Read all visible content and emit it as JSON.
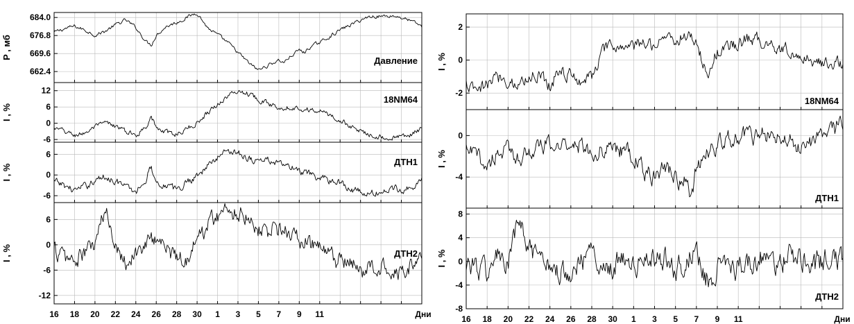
{
  "figure": {
    "x_axis_label": "Дни",
    "x_ticks": [
      "16",
      "18",
      "20",
      "22",
      "24",
      "26",
      "28",
      "30",
      "1",
      "3",
      "5",
      "7",
      "9",
      "11"
    ]
  },
  "chart_data": [
    {
      "type": "line",
      "label": "Давление",
      "ylabel": "P , мб",
      "yticks": [
        "684.0",
        "676.8",
        "669.6",
        "662.4"
      ],
      "ylim": [
        658,
        686
      ],
      "keypoints": [
        [
          0,
          678
        ],
        [
          1,
          679.5
        ],
        [
          2,
          680.5
        ],
        [
          3,
          679
        ],
        [
          4,
          677
        ],
        [
          5,
          678.5
        ],
        [
          6,
          681
        ],
        [
          7,
          683
        ],
        [
          8,
          680
        ],
        [
          9,
          674.5
        ],
        [
          9.5,
          673
        ],
        [
          10,
          677
        ],
        [
          11,
          680.5
        ],
        [
          12,
          682
        ],
        [
          13,
          684
        ],
        [
          14,
          686
        ],
        [
          14.5,
          683
        ],
        [
          15,
          680
        ],
        [
          16,
          677
        ],
        [
          17,
          674
        ],
        [
          18,
          670
        ],
        [
          19,
          666
        ],
        [
          20,
          663
        ],
        [
          21,
          665
        ],
        [
          22,
          667
        ],
        [
          22.5,
          666
        ],
        [
          23,
          668
        ],
        [
          24,
          671
        ],
        [
          24.5,
          670
        ],
        [
          25,
          672
        ],
        [
          26,
          674
        ],
        [
          27,
          676.5
        ],
        [
          28,
          679
        ],
        [
          29,
          681
        ],
        [
          30,
          683
        ],
        [
          31,
          684.5
        ],
        [
          32,
          684.5
        ],
        [
          33,
          684.8
        ],
        [
          34,
          684
        ],
        [
          35,
          682.5
        ],
        [
          36,
          680.5
        ]
      ],
      "noise": 0.6
    },
    {
      "type": "line",
      "label": "18NM64",
      "ylabel": "I , %",
      "yticks": [
        "12",
        "6",
        "0",
        "-6"
      ],
      "ylim": [
        -7,
        15
      ],
      "keypoints": [
        [
          0,
          -2
        ],
        [
          1,
          -3
        ],
        [
          2,
          -4.5
        ],
        [
          3,
          -3.5
        ],
        [
          4,
          -1.5
        ],
        [
          5,
          0
        ],
        [
          6,
          -1
        ],
        [
          7,
          -3
        ],
        [
          8,
          -4.5
        ],
        [
          9,
          -1
        ],
        [
          9.5,
          3
        ],
        [
          10,
          -2
        ],
        [
          11,
          -3.5
        ],
        [
          12,
          -4
        ],
        [
          13,
          -2
        ],
        [
          14,
          0
        ],
        [
          15,
          4
        ],
        [
          16,
          7
        ],
        [
          17,
          10
        ],
        [
          18,
          12
        ],
        [
          19,
          11
        ],
        [
          20,
          9
        ],
        [
          21,
          7
        ],
        [
          22,
          6
        ],
        [
          23,
          6
        ],
        [
          24,
          5.5
        ],
        [
          25,
          5
        ],
        [
          26,
          4.5
        ],
        [
          27,
          3
        ],
        [
          28,
          1
        ],
        [
          29,
          -1
        ],
        [
          30,
          -3
        ],
        [
          31,
          -4
        ],
        [
          32,
          -5
        ],
        [
          33,
          -5.5
        ],
        [
          34,
          -5
        ],
        [
          35,
          -4
        ],
        [
          36,
          -2
        ]
      ],
      "noise": 0.8
    },
    {
      "type": "line",
      "label": "ДТН1",
      "ylabel": "I , %",
      "yticks": [
        "6",
        "0",
        "-6"
      ],
      "ylim": [
        -8,
        9.5
      ],
      "keypoints": [
        [
          0,
          -2
        ],
        [
          1,
          -3
        ],
        [
          2,
          -4.5
        ],
        [
          3,
          -3.5
        ],
        [
          4,
          -1.5
        ],
        [
          5,
          -0.5
        ],
        [
          6,
          -1.5
        ],
        [
          7,
          -3.5
        ],
        [
          8,
          -5
        ],
        [
          9,
          -1
        ],
        [
          9.5,
          2.5
        ],
        [
          10,
          -2
        ],
        [
          11,
          -3
        ],
        [
          12,
          -4.5
        ],
        [
          13,
          -2
        ],
        [
          14,
          0
        ],
        [
          15,
          2.5
        ],
        [
          16,
          5
        ],
        [
          17,
          7.5
        ],
        [
          18,
          6.5
        ],
        [
          19,
          5
        ],
        [
          20,
          4
        ],
        [
          21,
          4.5
        ],
        [
          22,
          3
        ],
        [
          23,
          2.5
        ],
        [
          24,
          1
        ],
        [
          25,
          0
        ],
        [
          26,
          -1
        ],
        [
          27,
          -1.5
        ],
        [
          28,
          -2
        ],
        [
          29,
          -4
        ],
        [
          30,
          -5
        ],
        [
          31,
          -5.5
        ],
        [
          32,
          -5
        ],
        [
          33,
          -4
        ],
        [
          34,
          -4
        ],
        [
          35,
          -3.5
        ],
        [
          36,
          -1.5
        ]
      ],
      "noise": 0.9
    },
    {
      "type": "line",
      "label": "ДТН2",
      "ylabel": "I , %",
      "yticks": [
        "6",
        "0",
        "-6",
        "-12"
      ],
      "ylim": [
        -14,
        10
      ],
      "keypoints": [
        [
          0,
          -1
        ],
        [
          1,
          -3
        ],
        [
          2,
          -4
        ],
        [
          3,
          -2
        ],
        [
          4,
          0
        ],
        [
          5,
          8
        ],
        [
          6,
          1
        ],
        [
          7,
          -4
        ],
        [
          8,
          -2
        ],
        [
          9,
          0
        ],
        [
          10,
          2
        ],
        [
          11,
          -1
        ],
        [
          12,
          -3
        ],
        [
          13,
          -3
        ],
        [
          14,
          1
        ],
        [
          15,
          5
        ],
        [
          16,
          7
        ],
        [
          17,
          8
        ],
        [
          18,
          8
        ],
        [
          19,
          7
        ],
        [
          20,
          4
        ],
        [
          21,
          3
        ],
        [
          22,
          4
        ],
        [
          23,
          3
        ],
        [
          24,
          1
        ],
        [
          25,
          0
        ],
        [
          26,
          -1
        ],
        [
          27,
          -3
        ],
        [
          28,
          -4
        ],
        [
          29,
          -5
        ],
        [
          30,
          -6
        ],
        [
          31,
          -6
        ],
        [
          32,
          -5
        ],
        [
          33,
          -5
        ],
        [
          34,
          -6
        ],
        [
          35,
          -5
        ],
        [
          36,
          -3
        ]
      ],
      "noise": 1.8
    },
    {
      "type": "line",
      "label": "18NM64",
      "ylabel": "I , %",
      "yticks": [
        "2",
        "0",
        "-2"
      ],
      "ylim": [
        -3,
        2.8
      ],
      "keypoints": [
        [
          0,
          -1.5
        ],
        [
          1,
          -2
        ],
        [
          2,
          -1.5
        ],
        [
          3,
          -1
        ],
        [
          4,
          -1.2
        ],
        [
          5,
          -1.5
        ],
        [
          6,
          -1
        ],
        [
          7,
          -0.8
        ],
        [
          8,
          -1.5
        ],
        [
          9,
          -0.5
        ],
        [
          10,
          -1
        ],
        [
          11,
          -1.2
        ],
        [
          12,
          -1
        ],
        [
          13,
          0.5
        ],
        [
          14,
          0.8
        ],
        [
          15,
          0.8
        ],
        [
          16,
          0.8
        ],
        [
          17,
          1
        ],
        [
          18,
          1
        ],
        [
          19,
          1.5
        ],
        [
          20,
          1.2
        ],
        [
          21,
          1.5
        ],
        [
          22,
          1.2
        ],
        [
          23,
          -1
        ],
        [
          24,
          0.5
        ],
        [
          25,
          0.8
        ],
        [
          26,
          1
        ],
        [
          27,
          1.3
        ],
        [
          28,
          1.2
        ],
        [
          29,
          1
        ],
        [
          30,
          0.8
        ],
        [
          31,
          0.6
        ],
        [
          32,
          0.2
        ],
        [
          33,
          0
        ],
        [
          34,
          -0.2
        ],
        [
          35,
          0
        ],
        [
          36,
          -0.3
        ]
      ],
      "noise": 0.35
    },
    {
      "type": "line",
      "label": "ДТН1",
      "ylabel": "I , %",
      "yticks": [
        "0",
        "-4"
      ],
      "ylim": [
        -7,
        2.5
      ],
      "keypoints": [
        [
          0,
          -1.5
        ],
        [
          1,
          -2
        ],
        [
          2,
          -3
        ],
        [
          3,
          -1.5
        ],
        [
          4,
          -1.5
        ],
        [
          5,
          -2
        ],
        [
          6,
          -1.5
        ],
        [
          7,
          -1.2
        ],
        [
          8,
          -1
        ],
        [
          9,
          -1
        ],
        [
          10,
          -0.5
        ],
        [
          11,
          -1
        ],
        [
          12,
          -1.5
        ],
        [
          13,
          -1.5
        ],
        [
          14,
          -1
        ],
        [
          15,
          -1.5
        ],
        [
          16,
          -2
        ],
        [
          17,
          -3.5
        ],
        [
          18,
          -4
        ],
        [
          19,
          -3
        ],
        [
          20,
          -4
        ],
        [
          21,
          -4.5
        ],
        [
          21.5,
          -6.5
        ],
        [
          22,
          -3
        ],
        [
          23,
          -1.5
        ],
        [
          24,
          -1
        ],
        [
          25,
          -0.5
        ],
        [
          26,
          0
        ],
        [
          27,
          0
        ],
        [
          28,
          0
        ],
        [
          29,
          0
        ],
        [
          30,
          -0.5
        ],
        [
          31,
          -0.5
        ],
        [
          32,
          -1
        ],
        [
          33,
          -0.5
        ],
        [
          34,
          0
        ],
        [
          35,
          0.5
        ],
        [
          36,
          1
        ]
      ],
      "noise": 0.7
    },
    {
      "type": "line",
      "label": "ДТН2",
      "ylabel": "I , %",
      "yticks": [
        "8",
        "4",
        "0",
        "-4",
        "-8"
      ],
      "ylim": [
        -8,
        9
      ],
      "keypoints": [
        [
          0,
          0
        ],
        [
          1,
          -1
        ],
        [
          2,
          -2
        ],
        [
          3,
          1
        ],
        [
          4,
          -1
        ],
        [
          5,
          7
        ],
        [
          6,
          2
        ],
        [
          7,
          -1
        ],
        [
          8,
          0
        ],
        [
          9,
          -2
        ],
        [
          10,
          -1
        ],
        [
          11,
          0
        ],
        [
          12,
          1
        ],
        [
          13,
          0
        ],
        [
          14,
          -1
        ],
        [
          15,
          1
        ],
        [
          16,
          -1
        ],
        [
          17,
          0
        ],
        [
          18,
          0
        ],
        [
          19,
          1
        ],
        [
          20,
          -1
        ],
        [
          21,
          0
        ],
        [
          22,
          3
        ],
        [
          22.5,
          -2
        ],
        [
          23,
          -3
        ],
        [
          24,
          -1
        ],
        [
          25,
          0
        ],
        [
          26,
          -1
        ],
        [
          27,
          0
        ],
        [
          28,
          1
        ],
        [
          29,
          -1
        ],
        [
          30,
          0
        ],
        [
          31,
          1
        ],
        [
          32,
          0
        ],
        [
          33,
          -1
        ],
        [
          34,
          0
        ],
        [
          35,
          1
        ],
        [
          36,
          0
        ]
      ],
      "noise": 1.7
    }
  ]
}
